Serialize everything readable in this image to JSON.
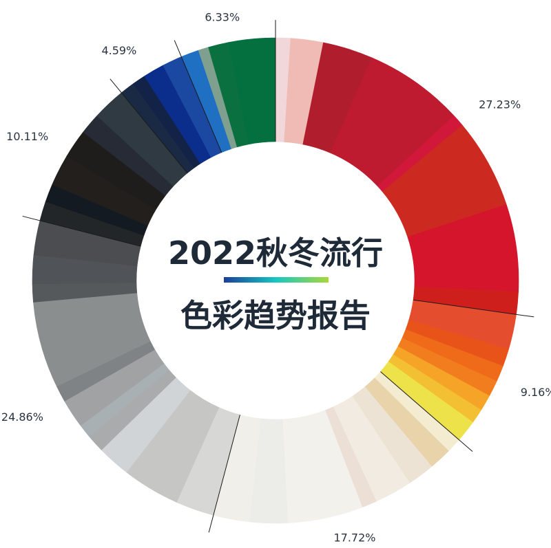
{
  "chart_data": {
    "type": "pie",
    "donut": true,
    "title_lines": [
      "2022秋冬流行",
      "色彩趋势报告"
    ],
    "title_bar_gradient": [
      "#1a3f9c",
      "#18c7c0",
      "#a8d83a"
    ],
    "groups": [
      {
        "name": "reds",
        "percent": 27.23,
        "label": "27.23%"
      },
      {
        "name": "oranges-yellows",
        "percent": 9.16,
        "label": "9.16%"
      },
      {
        "name": "neutrals-whites",
        "percent": 17.72,
        "label": "17.72%"
      },
      {
        "name": "greys",
        "percent": 24.86,
        "label": "24.86%"
      },
      {
        "name": "blacks-darks",
        "percent": 10.11,
        "label": "10.11%"
      },
      {
        "name": "blues",
        "percent": 4.59,
        "label": "4.59%"
      },
      {
        "name": "greens",
        "percent": 6.33,
        "label": "6.33%"
      }
    ],
    "slices": [
      {
        "group": 0,
        "w": 1.2,
        "color": "#f1d7da"
      },
      {
        "group": 0,
        "w": 2.6,
        "color": "#efbbb4"
      },
      {
        "group": 0,
        "w": 4.0,
        "color": "#b01e2e"
      },
      {
        "group": 0,
        "w": 8.0,
        "color": "#be1a30"
      },
      {
        "group": 0,
        "w": 1.0,
        "color": "#d1183a"
      },
      {
        "group": 0,
        "w": 7.2,
        "color": "#cc2a20"
      },
      {
        "group": 0,
        "w": 7.0,
        "color": "#d4152c"
      },
      {
        "group": 0,
        "w": 1.8,
        "color": "#cf1f1c"
      },
      {
        "group": 1,
        "w": 2.4,
        "color": "#e44e2e"
      },
      {
        "group": 1,
        "w": 1.2,
        "color": "#e8531a"
      },
      {
        "group": 1,
        "w": 1.1,
        "color": "#ef6a19"
      },
      {
        "group": 1,
        "w": 1.1,
        "color": "#f27d1e"
      },
      {
        "group": 1,
        "w": 1.1,
        "color": "#f5a428"
      },
      {
        "group": 1,
        "w": 1.0,
        "color": "#f3c033"
      },
      {
        "group": 1,
        "w": 1.5,
        "color": "#eee24a"
      },
      {
        "group": 2,
        "w": 1.0,
        "color": "#f4ecd0"
      },
      {
        "group": 2,
        "w": 1.5,
        "color": "#e8d3ab"
      },
      {
        "group": 2,
        "w": 1.8,
        "color": "#ede3d4"
      },
      {
        "group": 2,
        "w": 2.5,
        "color": "#f1ebe2"
      },
      {
        "group": 2,
        "w": 1.0,
        "color": "#ece0d6"
      },
      {
        "group": 2,
        "w": 5.0,
        "color": "#f2f1ec"
      },
      {
        "group": 2,
        "w": 2.5,
        "color": "#ecece8"
      },
      {
        "group": 2,
        "w": 2.4,
        "color": "#f0efea"
      },
      {
        "group": 3,
        "w": 2.8,
        "color": "#d7d7d5"
      },
      {
        "group": 3,
        "w": 4.2,
        "color": "#c6c6c4"
      },
      {
        "group": 3,
        "w": 2.4,
        "color": "#d0d4d6"
      },
      {
        "group": 3,
        "w": 1.3,
        "color": "#a9abad"
      },
      {
        "group": 3,
        "w": 1.0,
        "color": "#a8b0b4"
      },
      {
        "group": 3,
        "w": 2.1,
        "color": "#a0a2a4"
      },
      {
        "group": 3,
        "w": 1.2,
        "color": "#7f8386"
      },
      {
        "group": 3,
        "w": 6.3,
        "color": "#8b8e8f"
      },
      {
        "group": 3,
        "w": 1.3,
        "color": "#56595c"
      },
      {
        "group": 3,
        "w": 2.1,
        "color": "#505357"
      },
      {
        "group": 3,
        "w": 2.5,
        "color": "#4b4d51"
      },
      {
        "group": 4,
        "w": 1.3,
        "color": "#232629"
      },
      {
        "group": 4,
        "w": 1.2,
        "color": "#141a21"
      },
      {
        "group": 4,
        "w": 2.1,
        "color": "#221f1c"
      },
      {
        "group": 4,
        "w": 1.9,
        "color": "#1f1d1b"
      },
      {
        "group": 4,
        "w": 1.4,
        "color": "#262b35"
      },
      {
        "group": 4,
        "w": 2.2,
        "color": "#2f3a42"
      },
      {
        "group": 5,
        "w": 1.1,
        "color": "#1a2a44"
      },
      {
        "group": 5,
        "w": 1.0,
        "color": "#132348"
      },
      {
        "group": 5,
        "w": 1.6,
        "color": "#0b2e8c"
      },
      {
        "group": 5,
        "w": 1.5,
        "color": "#1b48a0"
      },
      {
        "group": 6,
        "w": 1.4,
        "color": "#1f6fc2"
      },
      {
        "group": 6,
        "w": 0.8,
        "color": "#7fa08e"
      },
      {
        "group": 6,
        "w": 1.6,
        "color": "#0a7040"
      },
      {
        "group": 6,
        "w": 3.6,
        "color": "#047040"
      }
    ]
  }
}
